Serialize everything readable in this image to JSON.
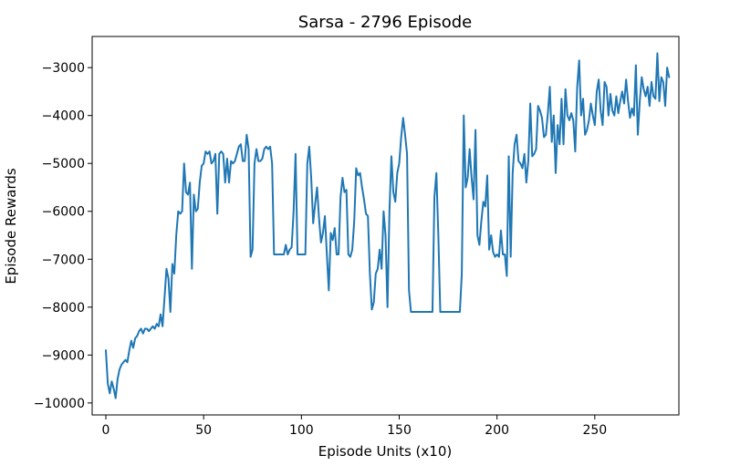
{
  "chart_data": {
    "type": "line",
    "title": "Sarsa - 2796 Episode",
    "xlabel": "Episode Units (x10)",
    "ylabel": "Episode Rewards",
    "xlim": [
      -7,
      293
    ],
    "ylim": [
      -10250,
      -2350
    ],
    "xticks": [
      0,
      50,
      100,
      150,
      200,
      250
    ],
    "xtick_labels": [
      "0",
      "50",
      "100",
      "150",
      "200",
      "250"
    ],
    "yticks": [
      -10000,
      -9000,
      -8000,
      -7000,
      -6000,
      -5000,
      -4000,
      -3000
    ],
    "ytick_labels": [
      "−10000",
      "−9000",
      "−8000",
      "−7000",
      "−6000",
      "−5000",
      "−4000",
      "−3000"
    ],
    "grid": false,
    "series": [
      {
        "color": "#1f77b4",
        "x_start": 0,
        "x_step": 1,
        "values": [
          -8900,
          -9600,
          -9800,
          -9550,
          -9700,
          -9900,
          -9500,
          -9300,
          -9200,
          -9150,
          -9100,
          -9150,
          -8900,
          -8700,
          -8850,
          -8650,
          -8600,
          -8500,
          -8450,
          -8550,
          -8450,
          -8450,
          -8500,
          -8450,
          -8400,
          -8450,
          -8350,
          -8400,
          -8150,
          -8400,
          -7800,
          -7200,
          -7400,
          -8100,
          -7100,
          -7300,
          -6500,
          -6000,
          -6050,
          -6000,
          -5000,
          -5600,
          -5650,
          -5400,
          -7200,
          -5650,
          -6000,
          -5950,
          -5400,
          -5050,
          -5000,
          -4750,
          -4800,
          -4750,
          -5000,
          -4950,
          -4800,
          -6050,
          -4800,
          -4750,
          -4800,
          -5400,
          -4900,
          -5400,
          -4950,
          -5000,
          -4950,
          -4800,
          -4650,
          -4600,
          -4950,
          -4950,
          -4400,
          -4700,
          -6950,
          -6800,
          -5000,
          -4700,
          -4950,
          -4950,
          -4900,
          -4700,
          -4650,
          -4700,
          -4650,
          -5000,
          -6900,
          -6900,
          -6900,
          -6900,
          -6900,
          -6900,
          -6700,
          -6900,
          -6800,
          -6750,
          -6000,
          -4800,
          -6900,
          -6900,
          -6900,
          -6900,
          -6900,
          -5000,
          -4650,
          -5300,
          -6250,
          -5850,
          -5500,
          -6150,
          -6650,
          -6450,
          -6100,
          -6900,
          -7650,
          -6450,
          -6600,
          -6350,
          -6900,
          -6900,
          -5700,
          -5300,
          -5600,
          -5550,
          -6900,
          -6950,
          -6800,
          -6200,
          -5100,
          -5250,
          -5200,
          -5500,
          -5750,
          -6050,
          -6100,
          -7300,
          -8050,
          -7900,
          -7300,
          -7200,
          -6800,
          -7200,
          -6000,
          -6500,
          -8000,
          -6000,
          -4850,
          -5600,
          -5800,
          -5200,
          -5000,
          -4450,
          -4050,
          -4400,
          -4800,
          -7650,
          -8100,
          -8100,
          -8100,
          -8100,
          -8100,
          -8100,
          -8100,
          -8100,
          -8100,
          -8100,
          -8100,
          -8100,
          -5700,
          -5200,
          -6500,
          -8100,
          -8100,
          -8100,
          -8100,
          -8100,
          -8100,
          -8100,
          -8100,
          -8100,
          -8100,
          -8100,
          -7300,
          -4000,
          -5500,
          -5300,
          -4700,
          -5300,
          -5750,
          -4300,
          -6500,
          -6700,
          -6200,
          -5800,
          -5900,
          -5250,
          -6800,
          -6500,
          -6850,
          -6950,
          -6900,
          -6950,
          -6400,
          -6900,
          -6900,
          -7350,
          -4850,
          -6950,
          -5200,
          -4600,
          -4400,
          -4950,
          -5000,
          -5100,
          -4800,
          -5400,
          -4950,
          -3750,
          -4850,
          -4800,
          -4700,
          -3800,
          -3900,
          -4050,
          -4450,
          -4400,
          -3950,
          -3400,
          -4550,
          -4000,
          -5200,
          -4200,
          -4600,
          -3650,
          -4600,
          -3450,
          -4000,
          -4100,
          -3950,
          -4100,
          -4750,
          -3400,
          -2850,
          -4000,
          -3650,
          -4400,
          -4300,
          -4100,
          -3750,
          -4000,
          -4200,
          -3500,
          -3250,
          -3900,
          -4200,
          -3300,
          -3400,
          -4000,
          -3550,
          -3900,
          -4000,
          -3600,
          -3950,
          -3700,
          -3500,
          -3750,
          -3250,
          -3700,
          -4050,
          -3850,
          -4000,
          -2950,
          -4400,
          -3700,
          -3200,
          -3450,
          -3600,
          -3400,
          -3800,
          -3300,
          -3600,
          -3650,
          -2700,
          -3700,
          -3200,
          -3300,
          -3800,
          -3000,
          -3200
        ]
      }
    ]
  }
}
